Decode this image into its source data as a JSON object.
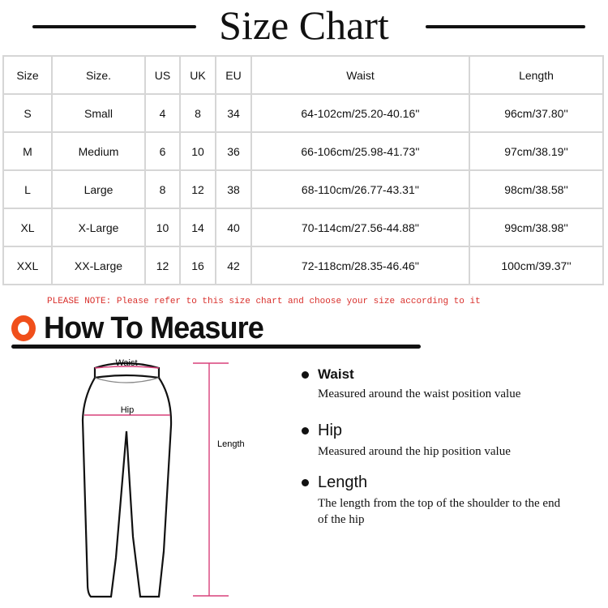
{
  "title": "Size Chart",
  "table": {
    "headers": [
      "Size",
      "Size.",
      "US",
      "UK",
      "EU",
      "Waist",
      "Length"
    ],
    "rows": [
      [
        "S",
        "Small",
        "4",
        "8",
        "34",
        "64-102cm/25.20-40.16''",
        "96cm/37.80''"
      ],
      [
        "M",
        "Medium",
        "6",
        "10",
        "36",
        "66-106cm/25.98-41.73''",
        "97cm/38.19''"
      ],
      [
        "L",
        "Large",
        "8",
        "12",
        "38",
        "68-110cm/26.77-43.31''",
        "98cm/38.58''"
      ],
      [
        "XL",
        "X-Large",
        "10",
        "14",
        "40",
        "70-114cm/27.56-44.88''",
        "99cm/38.98''"
      ],
      [
        "XXL",
        "XX-Large",
        "12",
        "16",
        "42",
        "72-118cm/28.35-46.46''",
        "100cm/39.37''"
      ]
    ]
  },
  "note": "PLEASE NOTE: Please refer to this size chart and choose your size according to it",
  "how_to_measure": "How To Measure",
  "diagram": {
    "waist": "Waist",
    "hip": "Hip",
    "length": "Length"
  },
  "measures": [
    {
      "label": "Waist",
      "desc": "Measured around the waist position value"
    },
    {
      "label": "Hip",
      "desc": "Measured around the  hip position value"
    },
    {
      "label": "Length",
      "desc": "The length from the top of the shoulder to the end of the hip"
    }
  ],
  "colors": {
    "accent": "#f04f1b",
    "note": "#d9302c",
    "measure_line": "#d8407a"
  }
}
